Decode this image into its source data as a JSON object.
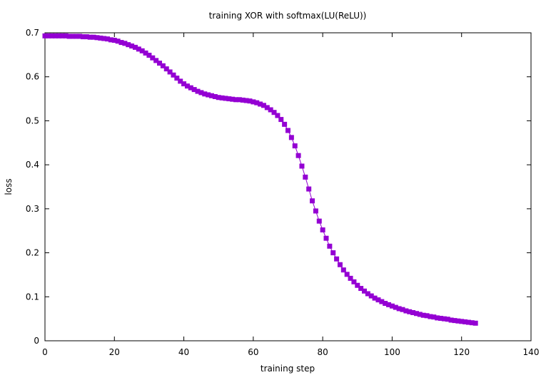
{
  "chart_data": {
    "type": "line",
    "title": "training XOR with softmax(LU(ReLU))",
    "xlabel": "training step",
    "ylabel": "loss",
    "xlim": [
      0,
      140
    ],
    "ylim": [
      0,
      0.7
    ],
    "xticks": [
      "0",
      "20",
      "40",
      "60",
      "80",
      "100",
      "120",
      "140"
    ],
    "yticks": [
      "0",
      "0.1",
      "0.2",
      "0.3",
      "0.4",
      "0.5",
      "0.6",
      "0.7"
    ],
    "grid": false,
    "legend": "none",
    "marker": "square",
    "series": [
      {
        "color": "#9400d3",
        "x": [
          0,
          1,
          2,
          3,
          4,
          5,
          6,
          7,
          8,
          9,
          10,
          11,
          12,
          13,
          14,
          15,
          16,
          17,
          18,
          19,
          20,
          21,
          22,
          23,
          24,
          25,
          26,
          27,
          28,
          29,
          30,
          31,
          32,
          33,
          34,
          35,
          36,
          37,
          38,
          39,
          40,
          41,
          42,
          43,
          44,
          45,
          46,
          47,
          48,
          49,
          50,
          51,
          52,
          53,
          54,
          55,
          56,
          57,
          58,
          59,
          60,
          61,
          62,
          63,
          64,
          65,
          66,
          67,
          68,
          69,
          70,
          71,
          72,
          73,
          74,
          75,
          76,
          77,
          78,
          79,
          80,
          81,
          82,
          83,
          84,
          85,
          86,
          87,
          88,
          89,
          90,
          91,
          92,
          93,
          94,
          95,
          96,
          97,
          98,
          99,
          100,
          101,
          102,
          103,
          104,
          105,
          106,
          107,
          108,
          109,
          110,
          111,
          112,
          113,
          114,
          115,
          116,
          117,
          118,
          119,
          120,
          121,
          122,
          123,
          124
        ],
        "y": [
          0.693,
          0.693,
          0.693,
          0.693,
          0.693,
          0.693,
          0.693,
          0.692,
          0.692,
          0.692,
          0.692,
          0.691,
          0.691,
          0.69,
          0.69,
          0.689,
          0.688,
          0.687,
          0.686,
          0.684,
          0.683,
          0.681,
          0.678,
          0.676,
          0.673,
          0.67,
          0.667,
          0.663,
          0.659,
          0.654,
          0.649,
          0.643,
          0.637,
          0.631,
          0.625,
          0.618,
          0.611,
          0.604,
          0.597,
          0.59,
          0.584,
          0.579,
          0.575,
          0.571,
          0.567,
          0.564,
          0.561,
          0.559,
          0.557,
          0.555,
          0.553,
          0.552,
          0.551,
          0.55,
          0.549,
          0.548,
          0.548,
          0.547,
          0.546,
          0.545,
          0.543,
          0.541,
          0.538,
          0.535,
          0.53,
          0.525,
          0.519,
          0.512,
          0.503,
          0.492,
          0.478,
          0.462,
          0.443,
          0.421,
          0.397,
          0.372,
          0.345,
          0.318,
          0.295,
          0.272,
          0.252,
          0.233,
          0.215,
          0.2,
          0.186,
          0.173,
          0.161,
          0.151,
          0.142,
          0.134,
          0.126,
          0.119,
          0.113,
          0.107,
          0.102,
          0.097,
          0.093,
          0.089,
          0.085,
          0.082,
          0.079,
          0.076,
          0.073,
          0.071,
          0.068,
          0.066,
          0.064,
          0.062,
          0.06,
          0.058,
          0.057,
          0.055,
          0.054,
          0.052,
          0.051,
          0.05,
          0.049,
          0.047,
          0.046,
          0.045,
          0.044,
          0.043,
          0.042,
          0.041,
          0.04
        ]
      }
    ]
  }
}
